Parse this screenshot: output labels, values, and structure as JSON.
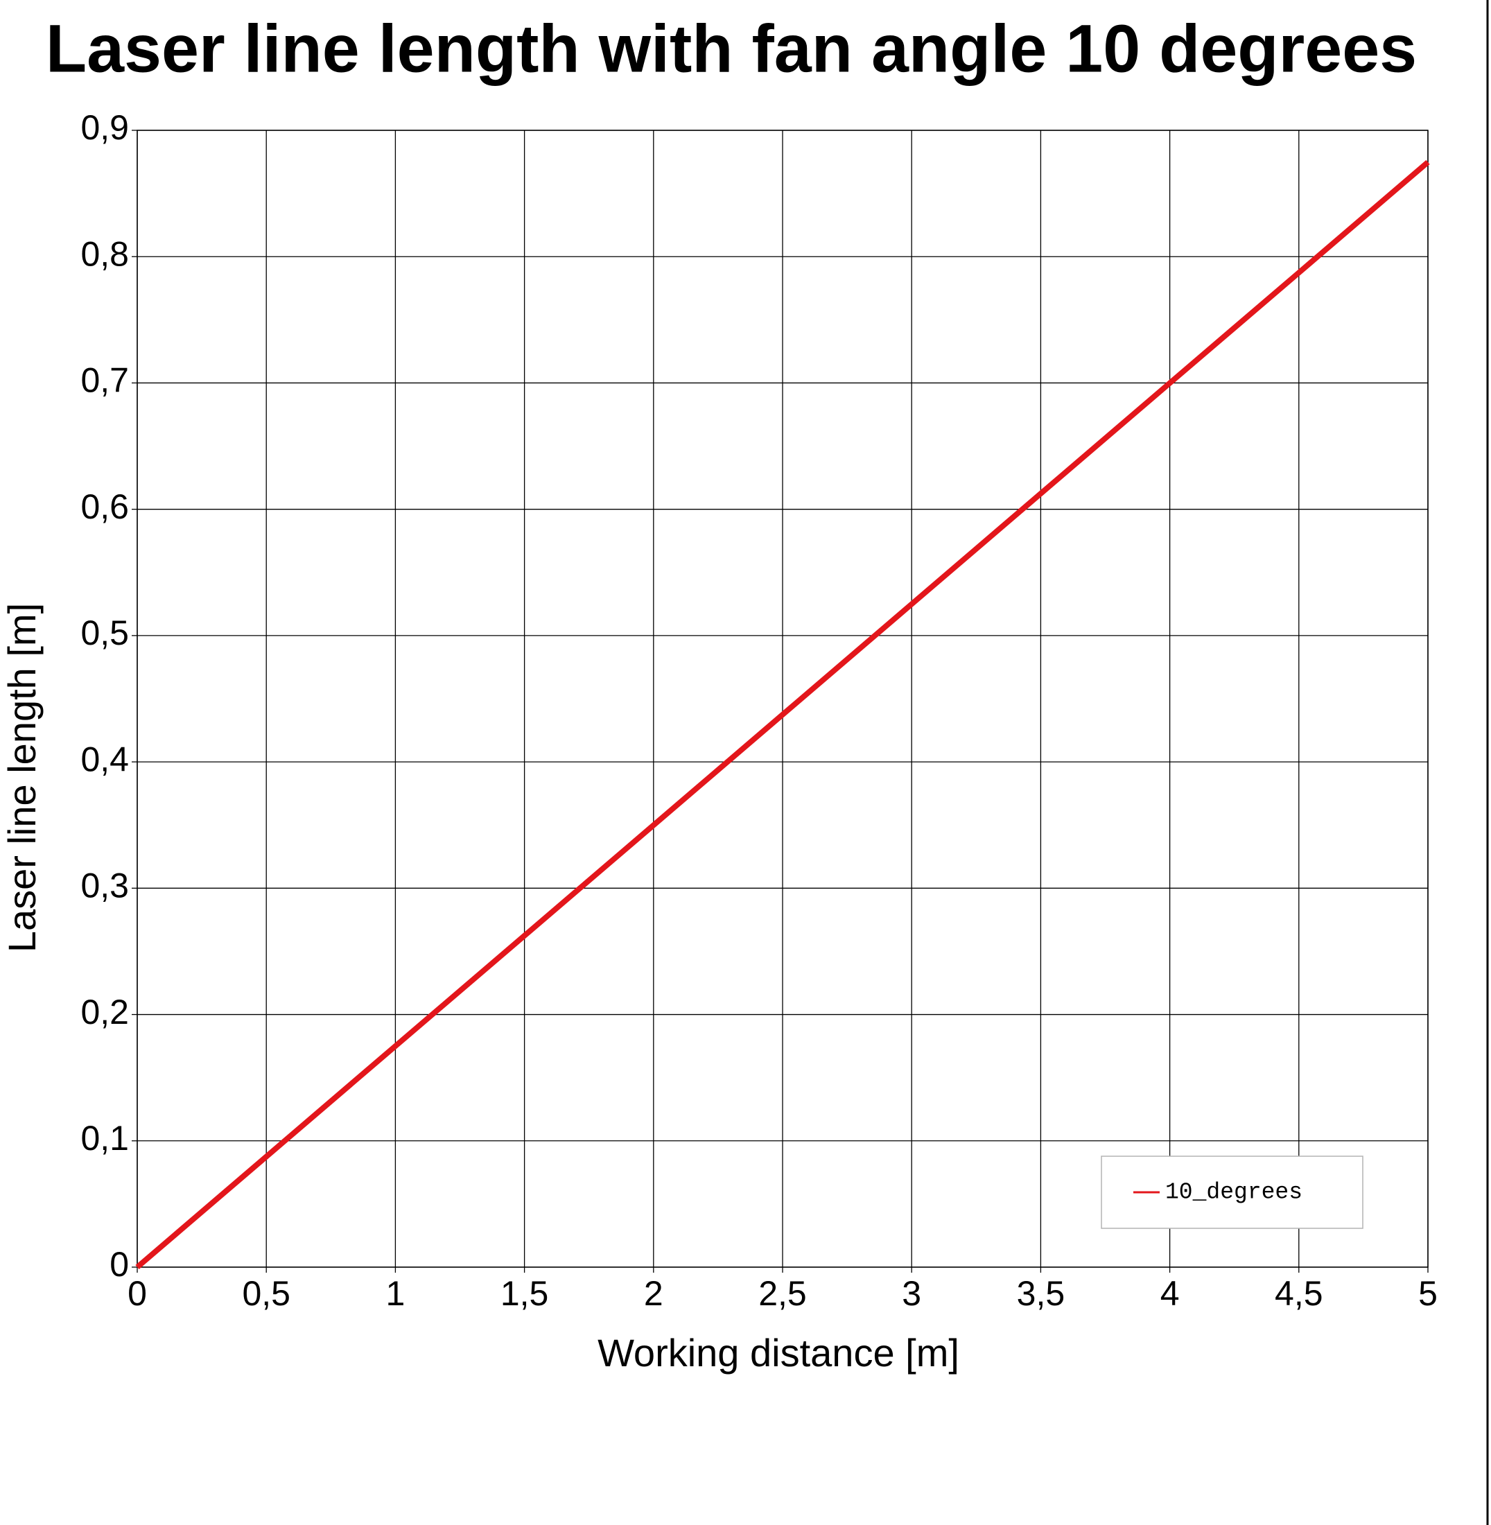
{
  "chart_data": {
    "type": "line",
    "title": "Laser line length with fan angle 10 degrees",
    "x_label": "Working distance [m]",
    "y_label": "Laser line length [m]",
    "x": [
      0,
      0.5,
      1,
      1.5,
      2,
      2.5,
      3,
      3.5,
      4,
      4.5,
      5
    ],
    "series": [
      {
        "name": "10_degrees",
        "color": "#e3161b",
        "values": [
          0,
          0.0875,
          0.175,
          0.2624,
          0.3499,
          0.4374,
          0.5249,
          0.6124,
          0.6999,
          0.7873,
          0.8748
        ]
      }
    ],
    "xlim": [
      0,
      5
    ],
    "xticks": [
      0,
      {
        "value": 0.5,
        "label": "0,5"
      },
      1,
      {
        "value": 1.5,
        "label": "1,5"
      },
      2,
      {
        "value": 2.5,
        "label": "2,5"
      },
      3,
      {
        "value": 3.5,
        "label": "3,5"
      },
      4,
      {
        "value": 4.5,
        "label": "4,5"
      },
      5
    ],
    "ylim": [
      0,
      0.9
    ],
    "yticks": [
      0,
      {
        "value": 0.1,
        "label": "0,1"
      },
      {
        "value": 0.2,
        "label": "0,2"
      },
      {
        "value": 0.3,
        "label": "0,3"
      },
      {
        "value": 0.4,
        "label": "0,4"
      },
      {
        "value": 0.5,
        "label": "0,5"
      },
      {
        "value": 0.6,
        "label": "0,6"
      },
      {
        "value": 0.7,
        "label": "0,7"
      },
      {
        "value": 0.8,
        "label": "0,8"
      },
      {
        "value": 0.9,
        "label": "0,9"
      }
    ],
    "grid": true,
    "legend": "lower right"
  }
}
